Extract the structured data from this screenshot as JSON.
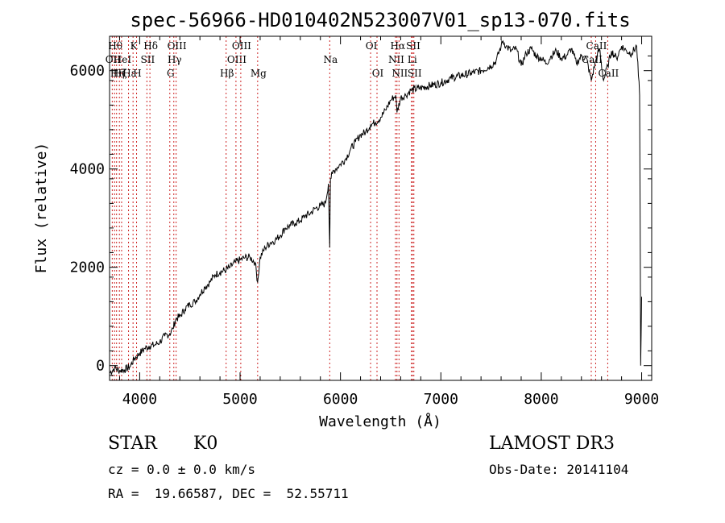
{
  "chart_data": {
    "type": "line",
    "title": "spec-56966-HD010402N523007V01_sp13-070.fits",
    "xlabel": "Wavelength (Å)",
    "ylabel": "Flux (relative)",
    "xlim": [
      3700,
      9100
    ],
    "ylim": [
      -300,
      6700
    ],
    "x_ticks": [
      4000,
      5000,
      6000,
      7000,
      8000,
      9000
    ],
    "y_ticks": [
      0,
      2000,
      4000,
      6000
    ],
    "grid": false,
    "series": [
      {
        "name": "spectrum",
        "x": [
          3700,
          3750,
          3800,
          3850,
          3900,
          3950,
          4000,
          4050,
          4100,
          4150,
          4200,
          4250,
          4300,
          4330,
          4360,
          4400,
          4450,
          4500,
          4550,
          4600,
          4650,
          4700,
          4750,
          4800,
          4861,
          4900,
          4950,
          5000,
          5050,
          5100,
          5150,
          5175,
          5200,
          5250,
          5300,
          5350,
          5400,
          5450,
          5500,
          5550,
          5600,
          5650,
          5700,
          5750,
          5800,
          5850,
          5880,
          5893,
          5900,
          5920,
          5950,
          6000,
          6050,
          6100,
          6150,
          6200,
          6250,
          6300,
          6350,
          6400,
          6450,
          6500,
          6550,
          6563,
          6600,
          6650,
          6700,
          6800,
          6900,
          7000,
          7100,
          7200,
          7300,
          7400,
          7500,
          7550,
          7600,
          7620,
          7650,
          7700,
          7750,
          7800,
          7850,
          7900,
          7950,
          8000,
          8050,
          8100,
          8150,
          8200,
          8250,
          8300,
          8350,
          8400,
          8450,
          8498,
          8542,
          8580,
          8620,
          8662,
          8700,
          8750,
          8800,
          8850,
          8900,
          8950,
          8980,
          8990,
          9000
        ],
        "y": [
          -150,
          -50,
          -100,
          -80,
          -30,
          150,
          250,
          350,
          400,
          420,
          480,
          600,
          650,
          750,
          950,
          1000,
          1150,
          1250,
          1300,
          1450,
          1600,
          1700,
          1850,
          1900,
          1950,
          2000,
          2100,
          2150,
          2200,
          2200,
          2100,
          1700,
          2200,
          2400,
          2500,
          2550,
          2650,
          2800,
          2850,
          2900,
          2950,
          3050,
          3100,
          3200,
          3250,
          3300,
          3700,
          2400,
          3800,
          3900,
          4000,
          4100,
          4200,
          4400,
          4550,
          4700,
          4750,
          4900,
          4950,
          5050,
          5200,
          5400,
          5500,
          5150,
          5450,
          5500,
          5600,
          5650,
          5700,
          5750,
          5850,
          5900,
          5950,
          6000,
          6100,
          6200,
          6500,
          6600,
          6500,
          6400,
          6450,
          6100,
          6350,
          6450,
          6300,
          6250,
          6150,
          6300,
          6400,
          6250,
          6300,
          6450,
          6150,
          6300,
          6250,
          5800,
          6200,
          6450,
          5800,
          6100,
          6400,
          6250,
          6500,
          6400,
          6350,
          6500,
          5500,
          0,
          1400
        ]
      }
    ],
    "line_markers": [
      {
        "wavelength": 3727,
        "label": "OII",
        "row": 2
      },
      {
        "wavelength": 3750,
        "label": "Hθ",
        "row": 1
      },
      {
        "wavelength": 3770,
        "label": "Hη",
        "row": 3
      },
      {
        "wavelength": 3798,
        "label": "Hζ",
        "row": 3
      },
      {
        "wavelength": 3820,
        "label": "HeI",
        "row": 2
      },
      {
        "wavelength": 3889,
        "label": "Hε",
        "row": 3
      },
      {
        "wavelength": 3934,
        "label": "K",
        "row": 1
      },
      {
        "wavelength": 3969,
        "label": "H",
        "row": 3
      },
      {
        "wavelength": 4072,
        "label": "SII",
        "row": 2
      },
      {
        "wavelength": 4102,
        "label": "Hδ",
        "row": 1
      },
      {
        "wavelength": 4300,
        "label": "G",
        "row": 3
      },
      {
        "wavelength": 4340,
        "label": "Hγ",
        "row": 2
      },
      {
        "wavelength": 4363,
        "label": "OIII",
        "row": 1
      },
      {
        "wavelength": 4861,
        "label": "Hβ",
        "row": 3
      },
      {
        "wavelength": 4959,
        "label": "OIII",
        "row": 2
      },
      {
        "wavelength": 5007,
        "label": "OIII",
        "row": 1
      },
      {
        "wavelength": 5175,
        "label": "Mg",
        "row": 3
      },
      {
        "wavelength": 5893,
        "label": "Na",
        "row": 2
      },
      {
        "wavelength": 6300,
        "label": "OI",
        "row": 1
      },
      {
        "wavelength": 6364,
        "label": "OI",
        "row": 3
      },
      {
        "wavelength": 6548,
        "label": "NII",
        "row": 2
      },
      {
        "wavelength": 6563,
        "label": "Hα",
        "row": 1
      },
      {
        "wavelength": 6583,
        "label": "NII",
        "row": 3
      },
      {
        "wavelength": 6707,
        "label": "Li",
        "row": 2
      },
      {
        "wavelength": 6717,
        "label": "SII",
        "row": 1
      },
      {
        "wavelength": 6731,
        "label": "SII",
        "row": 3
      },
      {
        "wavelength": 8498,
        "label": "CaII",
        "row": 2
      },
      {
        "wavelength": 8542,
        "label": "CaII",
        "row": 1
      },
      {
        "wavelength": 8662,
        "label": "CaII",
        "row": 3
      }
    ]
  },
  "info": {
    "object_type": "STAR",
    "subclass": "K0",
    "survey": "LAMOST DR3",
    "cz": "cz = 0.0 ± 0.0 km/s",
    "obs_date": "Obs-Date: 20141104",
    "coords": "RA =  19.66587, DEC =  52.55711"
  }
}
